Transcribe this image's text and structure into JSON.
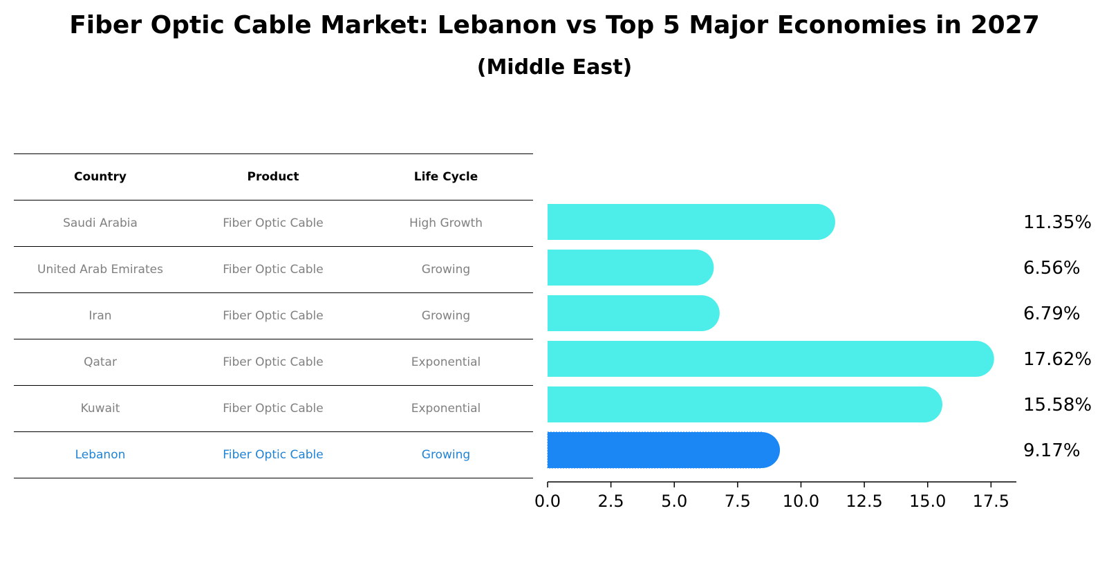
{
  "header": {
    "title": "Fiber Optic Cable Market: Lebanon vs Top 5 Major Economies in 2027",
    "subtitle": "(Middle East)"
  },
  "colors": {
    "bar": "#4deeea",
    "highlight": "#1a87f5",
    "highlight_text": "#1f83d6"
  },
  "table": {
    "columns": [
      "Country",
      "Product",
      "Life Cycle"
    ],
    "rows": [
      [
        "Saudi Arabia",
        "Fiber Optic Cable",
        "High Growth"
      ],
      [
        "United Arab Emirates",
        "Fiber Optic Cable",
        "Growing"
      ],
      [
        "Iran",
        "Fiber Optic Cable",
        "Growing"
      ],
      [
        "Qatar",
        "Fiber Optic Cable",
        "Exponential"
      ],
      [
        "Kuwait",
        "Fiber Optic Cable",
        "Exponential"
      ],
      [
        "Lebanon",
        "Fiber Optic Cable",
        "Growing"
      ]
    ]
  },
  "chart_data": {
    "type": "bar",
    "orientation": "horizontal",
    "categories": [
      "Saudi Arabia",
      "United Arab Emirates",
      "Iran",
      "Qatar",
      "Kuwait",
      "Lebanon"
    ],
    "values": [
      11.35,
      6.56,
      6.79,
      17.62,
      15.58,
      9.17
    ],
    "value_labels": [
      "11.35%",
      "6.56%",
      "6.79%",
      "17.62%",
      "15.58%",
      "9.17%"
    ],
    "highlight": "Lebanon",
    "xlim": [
      0,
      18.5
    ],
    "xticks": [
      0.0,
      2.5,
      5.0,
      7.5,
      10.0,
      12.5,
      15.0,
      17.5
    ],
    "xtick_labels": [
      "0.0",
      "2.5",
      "5.0",
      "7.5",
      "10.0",
      "12.5",
      "15.0",
      "17.5"
    ],
    "title": "Fiber Optic Cable Market: Lebanon vs Top 5 Major Economies in 2027",
    "xlabel": "",
    "ylabel": ""
  }
}
